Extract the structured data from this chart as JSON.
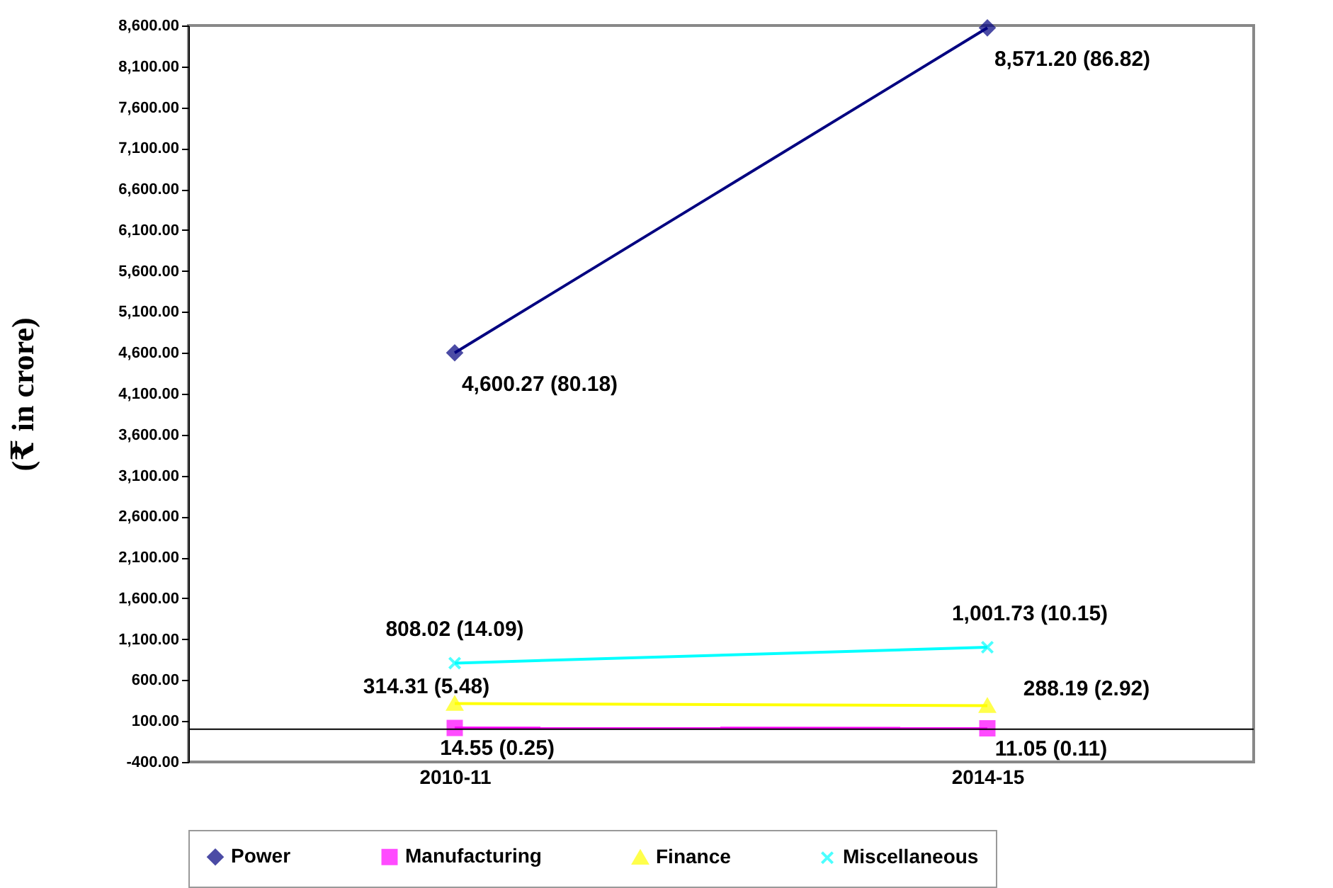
{
  "chart_data": {
    "type": "line",
    "ylabel": "(₹ in crore)",
    "categories": [
      "2010-11",
      "2014-15"
    ],
    "series": [
      {
        "name": "Power",
        "color": "#000080",
        "marker": "diamond",
        "values": [
          4600.27,
          8571.2
        ],
        "value_labels": [
          "4,600.27 (80.18)",
          "8,571.20 (86.82)"
        ]
      },
      {
        "name": "Manufacturing",
        "color": "#ff00ff",
        "marker": "square",
        "values": [
          14.55,
          11.05
        ],
        "value_labels": [
          "14.55 (0.25)",
          "11.05 (0.11)"
        ]
      },
      {
        "name": "Finance",
        "color": "#ffff00",
        "marker": "triangle",
        "values": [
          314.31,
          288.19
        ],
        "value_labels": [
          "314.31 (5.48)",
          "288.19 (2.92)"
        ]
      },
      {
        "name": "Miscellaneous",
        "color": "#00ffff",
        "marker": "cross",
        "values": [
          808.02,
          1001.73
        ],
        "value_labels": [
          "808.02 (14.09)",
          "1,001.73 (10.15)"
        ]
      }
    ],
    "ylim": [
      -400,
      8600
    ],
    "yticks": [
      {
        "value": -400,
        "label": "-400.00"
      },
      {
        "value": 100,
        "label": "100.00"
      },
      {
        "value": 600,
        "label": "600.00"
      },
      {
        "value": 1100,
        "label": "1,100.00"
      },
      {
        "value": 1600,
        "label": "1,600.00"
      },
      {
        "value": 2100,
        "label": "2,100.00"
      },
      {
        "value": 2600,
        "label": "2,600.00"
      },
      {
        "value": 3100,
        "label": "3,100.00"
      },
      {
        "value": 3600,
        "label": "3,600.00"
      },
      {
        "value": 4100,
        "label": "4,100.00"
      },
      {
        "value": 4600,
        "label": "4,600.00"
      },
      {
        "value": 5100,
        "label": "5,100.00"
      },
      {
        "value": 5600,
        "label": "5,600.00"
      },
      {
        "value": 6100,
        "label": "6,100.00"
      },
      {
        "value": 6600,
        "label": "6,600.00"
      },
      {
        "value": 7100,
        "label": "7,100.00"
      },
      {
        "value": 7600,
        "label": "7,600.00"
      },
      {
        "value": 8100,
        "label": "8,100.00"
      },
      {
        "value": 8600,
        "label": "8,600.00"
      }
    ],
    "ref_lines": [
      {
        "axis": "y",
        "value": 0,
        "color": "#000000"
      }
    ],
    "grid": false,
    "legend": "bottom"
  }
}
